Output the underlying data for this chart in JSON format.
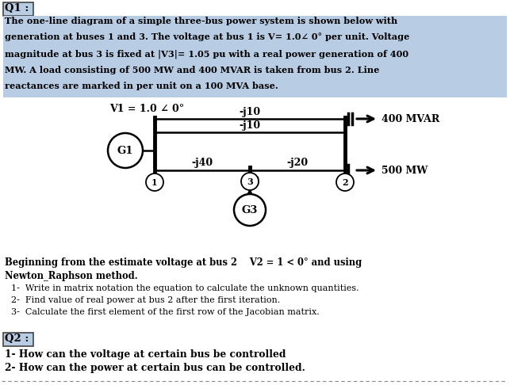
{
  "bg_color": "#ffffff",
  "highlight_color": "#b8cce4",
  "title_box": "Q1 :",
  "para_lines": [
    "The one-line diagram of a simple three-bus power system is shown below with",
    "generation at buses 1 and 3. The voltage at bus 1 is V= 1.0∠ 0° per unit. Voltage",
    "magnitude at bus 3 is fixed at |V3|= 1.05 pu with a real power generation of 400",
    "MW. A load consisting of 500 MW and 400 MVAR is taken from bus 2. Line",
    "reactances are marked in per unit on a 100 MVA base."
  ],
  "v1_label": "V1 = 1.0 ∠ 0°",
  "line_j10_top": "-j10",
  "line_j10_bot": "-j10",
  "line_j40": "-j40",
  "line_j20": "-j20",
  "load_mvar": "→ 400 MVAR",
  "load_mw": "→ 500 MW",
  "bus1_label": "1",
  "bus2_label": "2",
  "bus3_label": "3",
  "gen1_label": "G1",
  "gen3_label": "G3",
  "bold_lines": [
    "Beginning from the estimate voltage at bus 2    V2 = 1 < 0° and using",
    "Newton_Raphson method."
  ],
  "items": [
    "1-  Write in matrix notation the equation to calculate the unknown quantities.",
    "2-  Find value of real power at bus 2 after the first iteration.",
    "3-  Calculate the first element of the first row of the Jacobian matrix."
  ],
  "title_box2": "Q2 :",
  "q2_item1": "1- How can the voltage at certain bus be controlled",
  "q2_item2": "2- How can the power at certain bus can be controlled."
}
